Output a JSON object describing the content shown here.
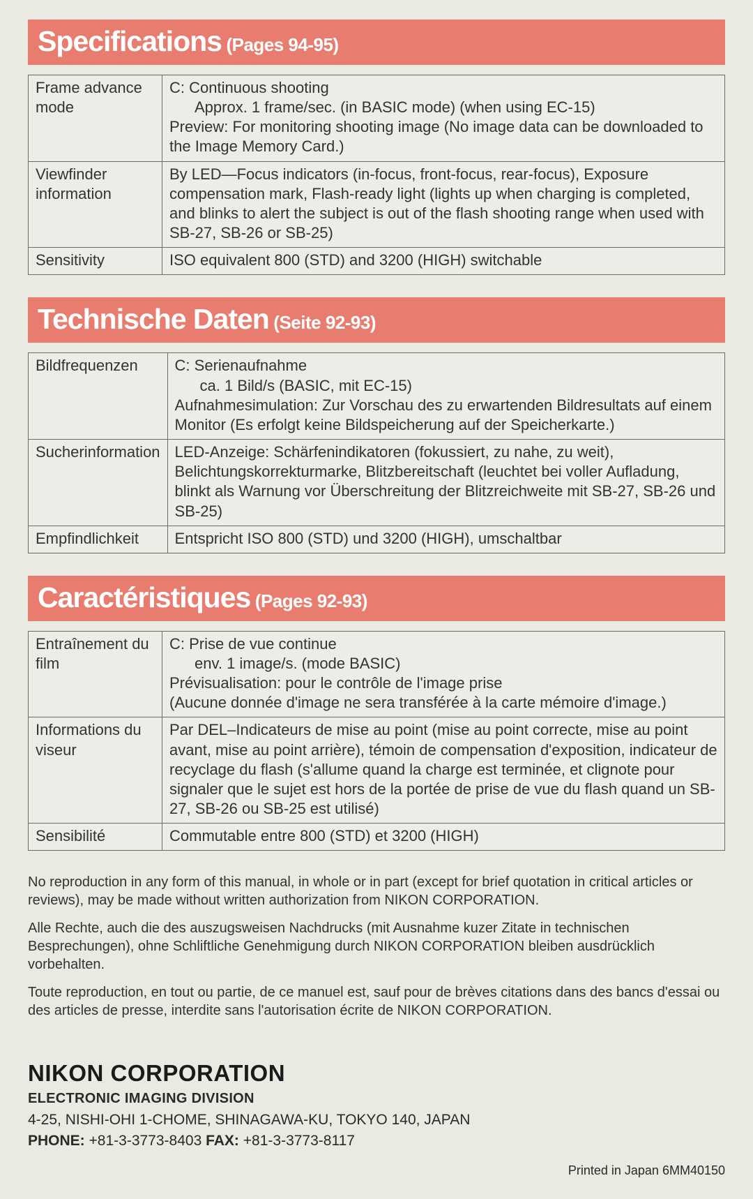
{
  "colors": {
    "header_bg": "#e77c6f",
    "header_text": "#ffffff",
    "page_bg": "#eae9e2",
    "border": "#6a6a66",
    "body_text": "#2a2a2a"
  },
  "sections": [
    {
      "title_main": "Specifications",
      "title_sub": "(Pages 94-95)",
      "rows": [
        {
          "label": "Frame advance mode",
          "value_lines": [
            "C: Continuous shooting",
            "    Approx. 1 frame/sec. (in BASIC mode) (when using EC-15)",
            "Preview: For monitoring shooting image (No image data can be downloaded to the Image Memory Card.)"
          ]
        },
        {
          "label": "Viewfinder information",
          "value_lines": [
            "By LED—Focus indicators (in-focus, front-focus, rear-focus), Exposure compensation mark, Flash-ready light (lights up when charging is completed, and blinks to alert the subject is out of the flash shooting range when used with SB-27, SB-26 or SB-25)"
          ]
        },
        {
          "label": "Sensitivity",
          "value_lines": [
            "ISO equivalent 800 (STD) and 3200 (HIGH) switchable"
          ]
        }
      ]
    },
    {
      "title_main": "Technische Daten",
      "title_sub": "(Seite 92-93)",
      "rows": [
        {
          "label": "Bildfrequenzen",
          "value_lines": [
            "C: Serienaufnahme",
            "    ca. 1 Bild/s (BASIC, mit EC-15)",
            "Aufnahmesimulation: Zur Vorschau des zu erwartenden Bildresultats auf einem Monitor (Es erfolgt keine Bildspeicherung auf der Speicherkarte.)"
          ]
        },
        {
          "label": "Sucherinformation",
          "value_lines": [
            "LED-Anzeige: Schärfenindikatoren (fokussiert, zu nahe, zu weit), Belichtungskorrekturmarke, Blitzbereitschaft (leuchtet bei voller Aufladung, blinkt als Warnung vor Überschreitung der Blitzreichweite mit SB-27, SB-26 und SB-25)"
          ]
        },
        {
          "label": "Empfindlichkeit",
          "value_lines": [
            "Entspricht ISO 800 (STD) und 3200 (HIGH), umschaltbar"
          ]
        }
      ]
    },
    {
      "title_main": "Caractéristiques",
      "title_sub": "(Pages 92-93)",
      "rows": [
        {
          "label": "Entraînement du film",
          "value_lines": [
            "C: Prise de vue continue",
            "    env. 1 image/s. (mode BASIC)",
            "Prévisualisation: pour le contrôle de l'image prise",
            "(Aucune donnée d'image ne sera transférée à la carte mémoire d'image.)"
          ]
        },
        {
          "label": "Informations du viseur",
          "value_lines": [
            "Par DEL–Indicateurs de mise au point (mise au point correcte, mise au point avant, mise au point arrière), témoin de compensation d'exposition, indicateur de recyclage du flash (s'allume quand la charge est terminée, et clignote pour signaler que le sujet est hors de la portée de prise de vue du flash quand un SB-27, SB-26 ou SB-25 est utilisé)"
          ]
        },
        {
          "label": "Sensibilité",
          "value_lines": [
            "Commutable entre 800 (STD) et 3200 (HIGH)"
          ]
        }
      ]
    }
  ],
  "legal": [
    "No reproduction in any form of this manual, in whole or in part (except for brief quotation in critical articles or reviews), may be made without written authorization from NIKON CORPORATION.",
    "Alle Rechte, auch die des auszugsweisen Nachdrucks (mit Ausnahme kuzer Zitate in technischen Besprechungen), ohne Schliftliche Genehmigung durch NIKON CORPORATION bleiben ausdrücklich vorbehalten.",
    "Toute reproduction, en tout ou partie, de ce manuel est, sauf pour de brèves citations dans des bancs d'essai ou des articles de presse, interdite sans l'autorisation écrite de NIKON CORPORATION."
  ],
  "footer": {
    "corp": "NIKON CORPORATION",
    "division": "ELECTRONIC IMAGING DIVISION",
    "address": "4-25, NISHI-OHI 1-CHOME, SHINAGAWA-KU, TOKYO 140, JAPAN",
    "phone_label": "PHONE:",
    "phone": "+81-3-3773-8403",
    "fax_label": "FAX:",
    "fax": "+81-3-3773-8117",
    "printed": "Printed in Japan 6MM40150"
  }
}
